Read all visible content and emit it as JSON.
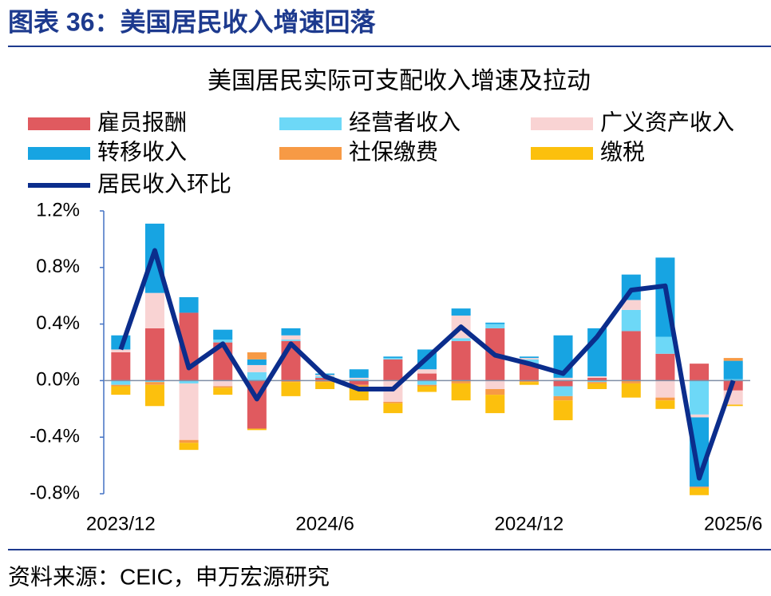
{
  "header_title": "图表 36：美国居民收入增速回落",
  "source": "资料来源：CEIC，申万宏源研究",
  "chart_data": {
    "type": "bar",
    "title": "美国居民实际可支配收入增速及拉动",
    "stacked": true,
    "categories": [
      "2023/12",
      null,
      null,
      null,
      null,
      null,
      "2024/6",
      null,
      null,
      null,
      null,
      null,
      "2024/12",
      null,
      null,
      null,
      null,
      null,
      "2025/6"
    ],
    "ylim": [
      -0.8,
      1.2
    ],
    "yticks": [
      {
        "value": -0.8,
        "label": "-0.8%"
      },
      {
        "value": -0.4,
        "label": "-0.4%"
      },
      {
        "value": 0,
        "label": "0.0%"
      },
      {
        "value": 0.4,
        "label": "0.4%"
      },
      {
        "value": 0.8,
        "label": "0.8%"
      },
      {
        "value": 1.2,
        "label": "1.2%"
      }
    ],
    "series": [
      {
        "name": "雇员报酬",
        "color": "#e05a5f",
        "values": [
          0.2,
          0.37,
          0.48,
          0.27,
          -0.34,
          0.28,
          0.02,
          -0.03,
          0.15,
          0.05,
          0.28,
          0.37,
          0.12,
          -0.04,
          0.02,
          0.35,
          0.19,
          0.12,
          -0.07
        ]
      },
      {
        "name": "经营者收入",
        "color": "#6dd8f7",
        "values": [
          -0.03,
          -0.01,
          -0.02,
          0.02,
          0.06,
          0.01,
          0.01,
          0.01,
          0.01,
          -0.03,
          0.02,
          0.03,
          0.03,
          -0.07,
          -0.01,
          0.15,
          0.12,
          -0.24,
          0.01
        ]
      },
      {
        "name": "广义资产收入",
        "color": "#f9d3d3",
        "values": [
          0.02,
          0.25,
          -0.4,
          -0.04,
          0.05,
          0.03,
          0.01,
          0.01,
          -0.15,
          0.03,
          0.16,
          -0.06,
          0.01,
          0.02,
          0.01,
          0.07,
          -0.12,
          -0.02,
          -0.1
        ]
      },
      {
        "name": "转移收入",
        "color": "#17a4e2",
        "values": [
          0.1,
          0.49,
          0.11,
          0.07,
          0.04,
          0.05,
          0.01,
          0.06,
          0.01,
          0.14,
          0.05,
          0.01,
          0.01,
          0.3,
          0.34,
          0.18,
          0.56,
          -0.49,
          0.13
        ]
      },
      {
        "name": "社保缴费",
        "color": "#f79a45",
        "values": [
          -0.01,
          -0.02,
          -0.02,
          -0.01,
          0.05,
          -0.01,
          -0.01,
          -0.01,
          -0.01,
          -0.01,
          -0.02,
          -0.04,
          -0.01,
          -0.03,
          -0.01,
          -0.02,
          -0.02,
          -0.01,
          0.02
        ]
      },
      {
        "name": "缴税",
        "color": "#fcc00d",
        "values": [
          -0.06,
          -0.15,
          -0.05,
          -0.05,
          -0.01,
          -0.1,
          -0.05,
          -0.1,
          -0.07,
          -0.04,
          -0.12,
          -0.13,
          -0.02,
          -0.14,
          -0.04,
          -0.1,
          -0.06,
          -0.05,
          -0.01
        ]
      },
      {
        "name": "居民收入环比",
        "color": "#0b2d8c",
        "type": "line",
        "values": [
          0.22,
          0.92,
          0.09,
          0.26,
          -0.13,
          0.26,
          0.03,
          -0.06,
          -0.06,
          0.16,
          0.38,
          0.18,
          0.12,
          0.05,
          0.31,
          0.64,
          0.67,
          -0.69,
          0.0
        ]
      }
    ]
  }
}
